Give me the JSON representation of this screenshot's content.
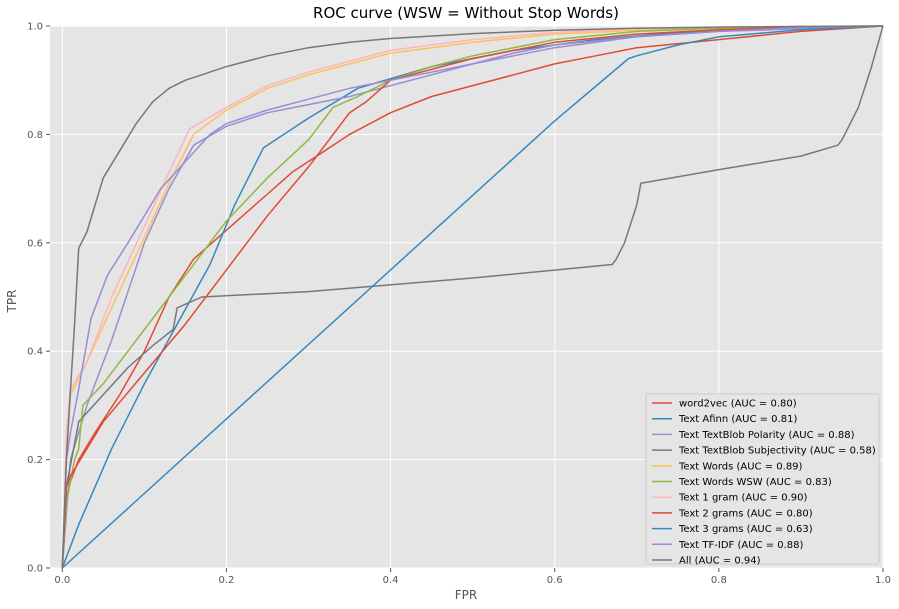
{
  "chart_data": {
    "type": "line",
    "title": "ROC curve (WSW = Without Stop Words)",
    "xlabel": "FPR",
    "ylabel": "TPR",
    "xlim": [
      -0.015,
      1.0
    ],
    "ylim": [
      0.0,
      1.0
    ],
    "xticks": [
      0.0,
      0.2,
      0.4,
      0.6,
      0.8,
      1.0
    ],
    "xtick_labels": [
      "0.0",
      "0.2",
      "0.4",
      "0.6",
      "0.8",
      "1.0"
    ],
    "yticks": [
      0.0,
      0.2,
      0.4,
      0.6,
      0.8,
      1.0
    ],
    "ytick_labels": [
      "0.0",
      "0.2",
      "0.4",
      "0.6",
      "0.8",
      "1.0"
    ],
    "grid": true,
    "legend_position": "lower-right",
    "background": "#e5e5e5",
    "series": [
      {
        "name": "word2vec (AUC = 0.80)",
        "color": "#e24a33",
        "x": [
          0,
          0.005,
          0.01,
          0.02,
          0.04,
          0.07,
          0.1,
          0.13,
          0.16,
          0.19,
          0.22,
          0.25,
          0.28,
          0.31,
          0.35,
          0.4,
          0.45,
          0.5,
          0.55,
          0.6,
          0.65,
          0.7,
          0.8,
          0.9,
          1.0
        ],
        "y": [
          0,
          0.13,
          0.16,
          0.2,
          0.25,
          0.32,
          0.4,
          0.5,
          0.57,
          0.61,
          0.65,
          0.69,
          0.73,
          0.76,
          0.8,
          0.84,
          0.87,
          0.89,
          0.91,
          0.93,
          0.945,
          0.96,
          0.975,
          0.99,
          1.0
        ]
      },
      {
        "name": "Text Afinn (AUC = 0.81)",
        "color": "#348abd",
        "x": [
          0,
          0.02,
          0.06,
          0.1,
          0.14,
          0.18,
          0.21,
          0.245,
          0.3,
          0.36,
          0.45,
          0.55,
          0.65,
          0.75,
          0.85,
          1.0
        ],
        "y": [
          0,
          0.08,
          0.22,
          0.34,
          0.45,
          0.56,
          0.67,
          0.775,
          0.83,
          0.885,
          0.925,
          0.955,
          0.975,
          0.988,
          0.995,
          1.0
        ]
      },
      {
        "name": "Text TextBlob Polarity (AUC = 0.88)",
        "color": "#988ed5",
        "x": [
          0,
          0.01,
          0.03,
          0.06,
          0.1,
          0.13,
          0.16,
          0.2,
          0.25,
          0.3,
          0.35,
          0.4,
          0.45,
          0.5,
          0.55,
          0.6,
          0.7,
          0.8,
          0.9,
          1.0
        ],
        "y": [
          0,
          0.2,
          0.3,
          0.42,
          0.6,
          0.7,
          0.78,
          0.815,
          0.84,
          0.855,
          0.87,
          0.89,
          0.91,
          0.93,
          0.95,
          0.965,
          0.98,
          0.99,
          0.995,
          1.0
        ]
      },
      {
        "name": "Text TextBlob Subjectivity (AUC = 0.58)",
        "color": "#777777",
        "x": [
          0,
          0.005,
          0.02,
          0.05,
          0.08,
          0.11,
          0.135,
          0.14,
          0.17,
          0.3,
          0.5,
          0.67,
          0.675,
          0.685,
          0.7,
          0.705,
          0.8,
          0.9,
          0.945,
          0.95,
          0.97,
          0.985,
          1.0
        ],
        "y": [
          0,
          0.15,
          0.27,
          0.32,
          0.37,
          0.41,
          0.44,
          0.48,
          0.5,
          0.51,
          0.535,
          0.56,
          0.57,
          0.6,
          0.67,
          0.71,
          0.735,
          0.76,
          0.78,
          0.79,
          0.85,
          0.92,
          1.0
        ]
      },
      {
        "name": "Text Words (AUC = 0.89)",
        "color": "#fbc15e",
        "x": [
          0,
          0.005,
          0.01,
          0.03,
          0.06,
          0.1,
          0.13,
          0.16,
          0.2,
          0.25,
          0.3,
          0.35,
          0.4,
          0.45,
          0.5,
          0.6,
          0.7,
          0.8,
          0.9,
          1.0
        ],
        "y": [
          0,
          0.22,
          0.32,
          0.38,
          0.48,
          0.61,
          0.71,
          0.8,
          0.845,
          0.885,
          0.91,
          0.93,
          0.95,
          0.96,
          0.97,
          0.985,
          0.992,
          0.997,
          0.999,
          1.0
        ]
      },
      {
        "name": "Text Words WSW (AUC = 0.83)",
        "color": "#8eba42",
        "x": [
          0,
          0.005,
          0.015,
          0.02,
          0.025,
          0.05,
          0.1,
          0.15,
          0.2,
          0.25,
          0.3,
          0.33,
          0.36,
          0.4,
          0.45,
          0.5,
          0.6,
          0.7,
          0.8,
          0.9,
          1.0
        ],
        "y": [
          0,
          0.12,
          0.2,
          0.22,
          0.3,
          0.34,
          0.44,
          0.54,
          0.64,
          0.72,
          0.79,
          0.85,
          0.87,
          0.9,
          0.925,
          0.945,
          0.975,
          0.99,
          0.996,
          0.999,
          1.0
        ]
      },
      {
        "name": "Text 1 gram (AUC = 0.90)",
        "color": "#ffb5b8",
        "x": [
          0,
          0.005,
          0.01,
          0.03,
          0.06,
          0.1,
          0.13,
          0.155,
          0.2,
          0.25,
          0.3,
          0.35,
          0.4,
          0.5,
          0.6,
          0.7,
          0.8,
          0.9,
          1.0
        ],
        "y": [
          0,
          0.25,
          0.33,
          0.38,
          0.5,
          0.63,
          0.73,
          0.81,
          0.85,
          0.89,
          0.915,
          0.935,
          0.955,
          0.975,
          0.988,
          0.995,
          0.998,
          0.999,
          1.0
        ]
      },
      {
        "name": "Text 2 grams (AUC = 0.80)",
        "color": "#e24a33",
        "x": [
          0,
          0.005,
          0.01,
          0.05,
          0.1,
          0.15,
          0.2,
          0.25,
          0.3,
          0.35,
          0.37,
          0.4,
          0.5,
          0.6,
          0.7,
          0.8,
          0.9,
          1.0
        ],
        "y": [
          0,
          0.15,
          0.17,
          0.27,
          0.36,
          0.45,
          0.55,
          0.65,
          0.74,
          0.84,
          0.86,
          0.9,
          0.94,
          0.97,
          0.985,
          0.993,
          0.998,
          1.0
        ]
      },
      {
        "name": "Text 3 grams (AUC = 0.63)",
        "color": "#348abd",
        "x": [
          0,
          0.2,
          0.4,
          0.6,
          0.69,
          0.7,
          0.75,
          0.8,
          0.9,
          1.0
        ],
        "y": [
          0,
          0.275,
          0.55,
          0.825,
          0.94,
          0.945,
          0.965,
          0.98,
          0.993,
          1.0
        ]
      },
      {
        "name": "Text TF-IDF (AUC = 0.88)",
        "color": "#988ed5",
        "x": [
          0,
          0.005,
          0.01,
          0.02,
          0.035,
          0.055,
          0.08,
          0.12,
          0.15,
          0.18,
          0.2,
          0.25,
          0.3,
          0.35,
          0.4,
          0.45,
          0.5,
          0.55,
          0.6,
          0.7,
          0.8,
          0.9,
          1.0
        ],
        "y": [
          0,
          0.2,
          0.25,
          0.33,
          0.46,
          0.54,
          0.6,
          0.7,
          0.75,
          0.8,
          0.82,
          0.845,
          0.865,
          0.885,
          0.9,
          0.915,
          0.93,
          0.945,
          0.96,
          0.98,
          0.99,
          0.997,
          1.0
        ]
      },
      {
        "name": "All (AUC = 0.94)",
        "color": "#777777",
        "x": [
          0,
          0.005,
          0.01,
          0.015,
          0.02,
          0.03,
          0.04,
          0.05,
          0.07,
          0.09,
          0.11,
          0.13,
          0.15,
          0.17,
          0.2,
          0.25,
          0.3,
          0.35,
          0.4,
          0.5,
          0.6,
          0.7,
          0.8,
          0.9,
          1.0
        ],
        "y": [
          0,
          0.2,
          0.33,
          0.45,
          0.59,
          0.62,
          0.67,
          0.72,
          0.77,
          0.82,
          0.86,
          0.885,
          0.9,
          0.91,
          0.925,
          0.945,
          0.96,
          0.97,
          0.977,
          0.986,
          0.992,
          0.996,
          0.998,
          0.999,
          1.0
        ]
      }
    ]
  }
}
